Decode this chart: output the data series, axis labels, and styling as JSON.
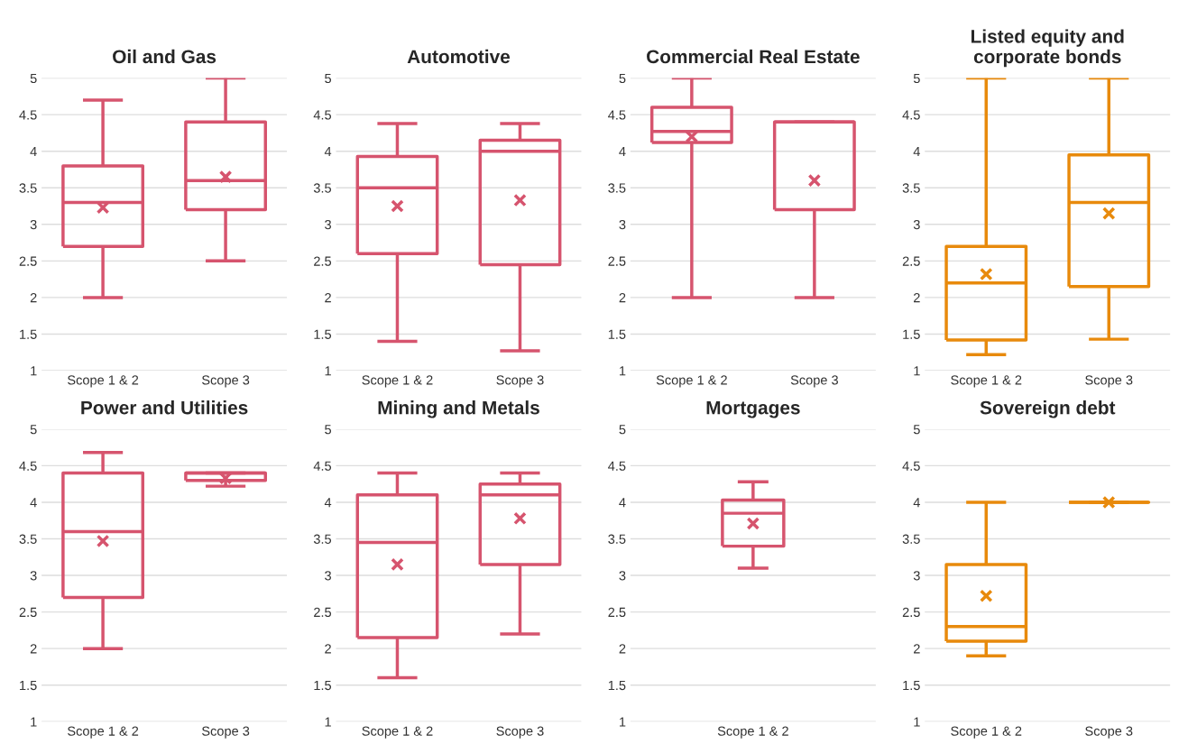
{
  "chart_data": [
    {
      "type": "box",
      "title": "Oil and Gas",
      "categories": [
        "Scope 1 & 2",
        "Scope 3"
      ],
      "color": "#d6546e",
      "ylim": [
        1,
        5
      ],
      "yticks": [
        1,
        1.5,
        2,
        2.5,
        3,
        3.5,
        4,
        4.5,
        5
      ],
      "grid": "y",
      "marker": "cross",
      "boxes": [
        {
          "low": 2.0,
          "q1": 2.7,
          "median": 3.3,
          "q3": 3.8,
          "high": 4.7,
          "mean": 3.23
        },
        {
          "low": 2.5,
          "q1": 3.2,
          "median": 3.6,
          "q3": 4.4,
          "high": 5.0,
          "mean": 3.65
        }
      ]
    },
    {
      "type": "box",
      "title": "Automotive",
      "categories": [
        "Scope 1 & 2",
        "Scope 3"
      ],
      "color": "#d6546e",
      "ylim": [
        1,
        5
      ],
      "yticks": [
        1,
        1.5,
        2,
        2.5,
        3,
        3.5,
        4,
        4.5,
        5
      ],
      "grid": "y",
      "marker": "cross",
      "boxes": [
        {
          "low": 1.4,
          "q1": 2.6,
          "median": 3.5,
          "q3": 3.93,
          "high": 4.38,
          "mean": 3.25
        },
        {
          "low": 1.27,
          "q1": 2.45,
          "median": 4.0,
          "q3": 4.15,
          "high": 4.38,
          "mean": 3.33
        }
      ]
    },
    {
      "type": "box",
      "title": "Commercial Real Estate",
      "categories": [
        "Scope 1 & 2",
        "Scope 3"
      ],
      "color": "#d6546e",
      "ylim": [
        1,
        5
      ],
      "yticks": [
        1,
        1.5,
        2,
        2.5,
        3,
        3.5,
        4,
        4.5,
        5
      ],
      "grid": "y",
      "marker": "cross",
      "boxes": [
        {
          "low": 2.0,
          "q1": 4.12,
          "median": 4.27,
          "q3": 4.6,
          "high": 5.0,
          "mean": 4.2
        },
        {
          "low": 2.0,
          "q1": 3.2,
          "median": 4.4,
          "q3": 4.4,
          "high": 4.4,
          "mean": 3.6
        }
      ]
    },
    {
      "type": "box",
      "title": "Listed equity and\ncorporate bonds",
      "categories": [
        "Scope 1 & 2",
        "Scope 3"
      ],
      "color": "#e88a0c",
      "ylim": [
        1,
        5
      ],
      "yticks": [
        1,
        1.5,
        2,
        2.5,
        3,
        3.5,
        4,
        4.5,
        5
      ],
      "grid": "y",
      "marker": "cross",
      "boxes": [
        {
          "low": 1.22,
          "q1": 1.42,
          "median": 2.2,
          "q3": 2.7,
          "high": 5.0,
          "mean": 2.32
        },
        {
          "low": 1.43,
          "q1": 2.15,
          "median": 3.3,
          "q3": 3.95,
          "high": 5.0,
          "mean": 3.15
        }
      ]
    },
    {
      "type": "box",
      "title": "Power and Utilities",
      "categories": [
        "Scope 1 & 2",
        "Scope 3"
      ],
      "color": "#d6546e",
      "ylim": [
        1,
        5
      ],
      "yticks": [
        1,
        1.5,
        2,
        2.5,
        3,
        3.5,
        4,
        4.5,
        5
      ],
      "grid": "y",
      "marker": "cross",
      "boxes": [
        {
          "low": 2.0,
          "q1": 2.7,
          "median": 3.6,
          "q3": 4.4,
          "high": 4.68,
          "mean": 3.47
        },
        {
          "low": 4.22,
          "q1": 4.3,
          "median": 4.4,
          "q3": 4.4,
          "high": 4.4,
          "mean": 4.33
        }
      ]
    },
    {
      "type": "box",
      "title": "Mining and Metals",
      "categories": [
        "Scope 1 & 2",
        "Scope 3"
      ],
      "color": "#d6546e",
      "ylim": [
        1,
        5
      ],
      "yticks": [
        1,
        1.5,
        2,
        2.5,
        3,
        3.5,
        4,
        4.5,
        5
      ],
      "grid": "y",
      "marker": "cross",
      "boxes": [
        {
          "low": 1.6,
          "q1": 2.15,
          "median": 3.45,
          "q3": 4.1,
          "high": 4.4,
          "mean": 3.15
        },
        {
          "low": 2.2,
          "q1": 3.15,
          "median": 4.1,
          "q3": 4.25,
          "high": 4.4,
          "mean": 3.78
        }
      ]
    },
    {
      "type": "box",
      "title": "Mortgages",
      "categories": [
        "Scope 1 & 2"
      ],
      "color": "#d6546e",
      "ylim": [
        1,
        5
      ],
      "yticks": [
        1,
        1.5,
        2,
        2.5,
        3,
        3.5,
        4,
        4.5,
        5
      ],
      "grid": "y",
      "marker": "cross",
      "boxes": [
        {
          "low": 3.1,
          "q1": 3.4,
          "median": 3.85,
          "q3": 4.03,
          "high": 4.28,
          "mean": 3.71
        }
      ]
    },
    {
      "type": "box",
      "title": "Sovereign debt",
      "categories": [
        "Scope 1 & 2",
        "Scope 3"
      ],
      "color": "#e88a0c",
      "ylim": [
        1,
        5
      ],
      "yticks": [
        1,
        1.5,
        2,
        2.5,
        3,
        3.5,
        4,
        4.5,
        5
      ],
      "grid": "y",
      "marker": "cross",
      "boxes": [
        {
          "low": 1.9,
          "q1": 2.1,
          "median": 2.3,
          "q3": 3.15,
          "high": 4.0,
          "mean": 2.72
        },
        {
          "low": 4.0,
          "q1": 4.0,
          "median": 4.0,
          "q3": 4.0,
          "high": 4.0,
          "mean": 4.0
        }
      ]
    }
  ]
}
